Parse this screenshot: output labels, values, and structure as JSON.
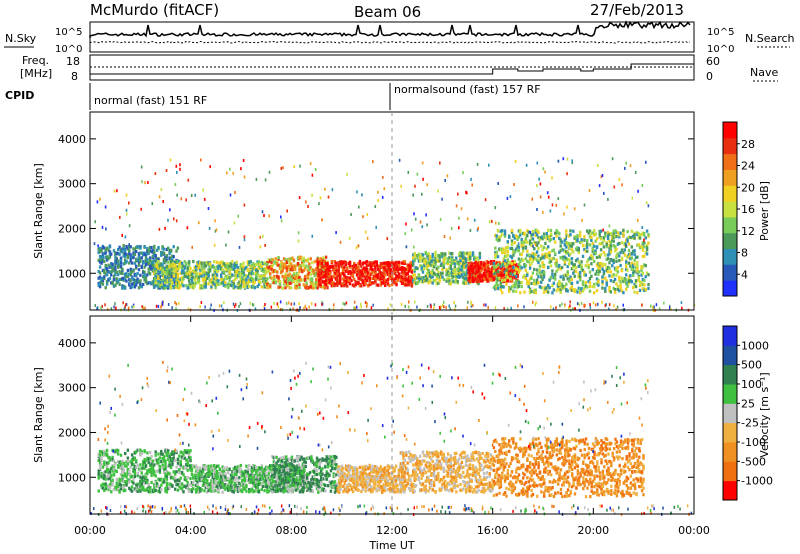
{
  "header": {
    "station": "McMurdo (fitACF)",
    "beam": "Beam 06",
    "date": "27/Feb/2013"
  },
  "strip_nsky": {
    "left_label": "N.Sky",
    "right_label": "N.Search",
    "y_ticks": [
      "10^5",
      "10^0"
    ]
  },
  "strip_freq": {
    "left_label_line1": "Freq.",
    "left_label_line2": "[MHz]",
    "left_ticks": [
      "18",
      "8"
    ],
    "right_label": "Nave",
    "right_ticks": [
      "60",
      "0"
    ]
  },
  "cpid": {
    "label": "CPID",
    "modes": [
      {
        "text": "normal (fast) 151 RF",
        "start_hour": 0,
        "end_hour": 12
      },
      {
        "text": "normalsound (fast) 157 RF",
        "start_hour": 12,
        "end_hour": 24
      }
    ]
  },
  "chart_data": [
    {
      "type": "heatmap",
      "title": "",
      "xlabel": "",
      "ylabel": "Slant Range [km]",
      "xlim": [
        0,
        24
      ],
      "ylim": [
        180,
        4600
      ],
      "y_ticks": [
        "1000",
        "2000",
        "3000",
        "4000"
      ],
      "colorbar": {
        "label": "Power [dB]",
        "ticks": [
          "4",
          "8",
          "12",
          "16",
          "20",
          "24",
          "28"
        ],
        "colors": [
          "#2030ff",
          "#2858b8",
          "#2f8fb4",
          "#4c9a5a",
          "#7acc5a",
          "#c8e040",
          "#f0d020",
          "#f0a020",
          "#f07018",
          "#e83010",
          "#ff0000"
        ]
      },
      "regions": [
        {
          "t0": 0.3,
          "t1": 3.5,
          "r0": 700,
          "r1": 1650,
          "level": "low"
        },
        {
          "t0": 2.5,
          "t1": 7.0,
          "r0": 700,
          "r1": 1300,
          "level": "mid"
        },
        {
          "t0": 7.0,
          "t1": 9.5,
          "r0": 700,
          "r1": 1400,
          "level": "high"
        },
        {
          "t0": 9.0,
          "t1": 12.8,
          "r0": 750,
          "r1": 1300,
          "level": "very-high"
        },
        {
          "t0": 12.8,
          "t1": 15.5,
          "r0": 800,
          "r1": 1500,
          "level": "mid"
        },
        {
          "t0": 15.0,
          "t1": 17.0,
          "r0": 850,
          "r1": 1300,
          "level": "very-high"
        },
        {
          "t0": 16.0,
          "t1": 22.2,
          "r0": 600,
          "r1": 2000,
          "level": "mid"
        }
      ]
    },
    {
      "type": "heatmap",
      "title": "",
      "xlabel": "Time UT",
      "ylabel": "Slant Range [km]",
      "xlim": [
        0,
        24
      ],
      "ylim": [
        180,
        4600
      ],
      "x_ticks": [
        "00:00",
        "04:00",
        "08:00",
        "12:00",
        "16:00",
        "20:00",
        "00:00"
      ],
      "y_ticks": [
        "1000",
        "2000",
        "3000",
        "4000"
      ],
      "colorbar": {
        "label": "Velocity [m s⁻¹]",
        "ticks": [
          "-1000",
          "-500",
          "-100",
          "-25",
          "25",
          "100",
          "500",
          "1000"
        ],
        "colors": [
          "#ff0000",
          "#f07010",
          "#f09020",
          "#f0b040",
          "#c0c0c0",
          "#40c040",
          "#308050",
          "#2050a0",
          "#2030e0"
        ]
      },
      "regions": [
        {
          "t0": 0.3,
          "t1": 4.0,
          "r0": 700,
          "r1": 1650,
          "level": "+100"
        },
        {
          "t0": 4.0,
          "t1": 8.5,
          "r0": 700,
          "r1": 1300,
          "level": "+100"
        },
        {
          "t0": 7.2,
          "t1": 9.8,
          "r0": 700,
          "r1": 1500,
          "level": "+500"
        },
        {
          "t0": 9.8,
          "t1": 12.5,
          "r0": 700,
          "r1": 1300,
          "level": "-100"
        },
        {
          "t0": 12.3,
          "t1": 16.0,
          "r0": 700,
          "r1": 1600,
          "level": "-100"
        },
        {
          "t0": 16.0,
          "t1": 22.0,
          "r0": 600,
          "r1": 1900,
          "level": "-500"
        }
      ]
    }
  ]
}
